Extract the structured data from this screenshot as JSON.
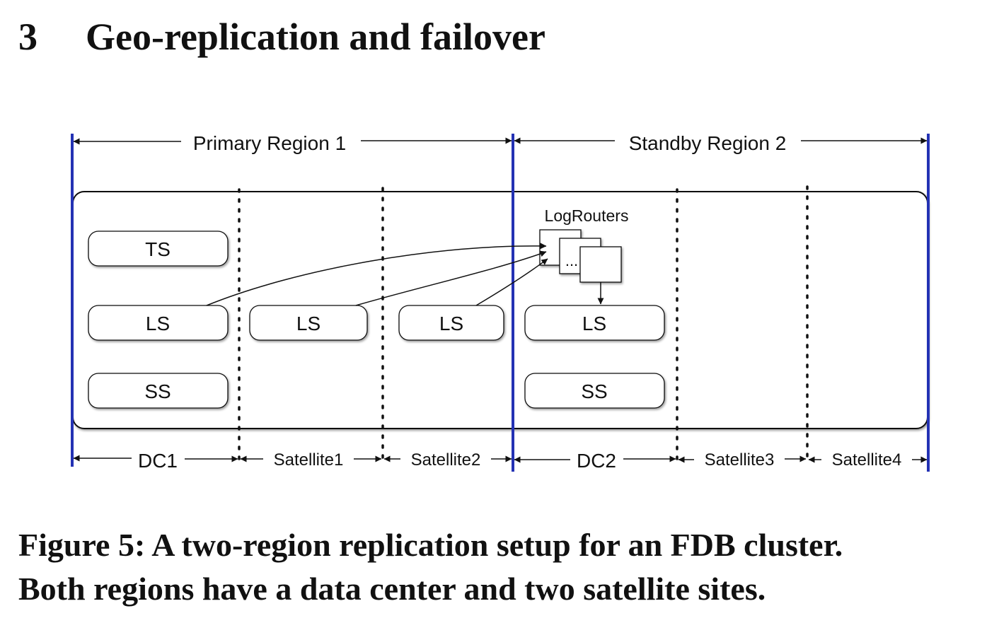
{
  "section": {
    "number": "3",
    "title": "Geo-replication and failover"
  },
  "figure": {
    "regions": [
      "Primary Region 1",
      "Standby Region 2"
    ],
    "log_routers_label": "LogRouters",
    "log_routers_ellipsis": "...",
    "boxes": {
      "ts": "TS",
      "ls": "LS",
      "ss": "SS"
    },
    "sites": [
      "DC1",
      "Satellite1",
      "Satellite2",
      "DC2",
      "Satellite3",
      "Satellite4"
    ],
    "colors": {
      "region_border": "#2432b4",
      "stroke": "#111111"
    }
  },
  "caption": {
    "line1": "Figure 5: A two-region replication setup for an FDB cluster.",
    "line2": "Both regions have a data center and two satellite sites."
  }
}
